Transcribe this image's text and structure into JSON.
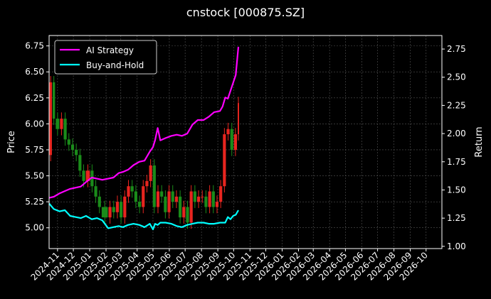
{
  "title": "cnstock [000875.SZ]",
  "colors": {
    "background": "#000000",
    "ai_strategy": "#ff00ff",
    "buy_and_hold": "#00ffff",
    "up_candle": "#e8251f",
    "down_candle": "#1a8c1a",
    "grid": "#555555"
  },
  "chart_data": {
    "type": "line",
    "title": "cnstock [000875.SZ]",
    "x_tick_labels": [
      "2024-11",
      "2024-12",
      "2025-01",
      "2025-02",
      "2025-03",
      "2025-04",
      "2025-05",
      "2025-06",
      "2025-07",
      "2025-08",
      "2025-09",
      "2025-10",
      "2025-11",
      "2025-12",
      "2026-01",
      "2026-02",
      "2026-03",
      "2026-04",
      "2026-05",
      "2026-06",
      "2026-07",
      "2026-08",
      "2026-09",
      "2026-10"
    ],
    "xlim": [
      "2024-10-16",
      "2026-10-31"
    ],
    "y_left": {
      "label": "Price",
      "lim": [
        4.8,
        6.85
      ],
      "ticks": [
        "5.00",
        "5.25",
        "5.50",
        "5.75",
        "6.00",
        "6.25",
        "6.50",
        "6.75"
      ]
    },
    "y_right": {
      "label": "Return",
      "lim": [
        0.98,
        2.87
      ],
      "ticks": [
        "1.00",
        "1.25",
        "1.50",
        "1.75",
        "2.00",
        "2.25",
        "2.50",
        "2.75"
      ]
    },
    "grid": true,
    "legend": "upper-left",
    "series": [
      {
        "name": "AI Strategy",
        "axis": "right",
        "x": [
          "2024-10-16",
          "2024-10-25",
          "2024-11-05",
          "2024-11-15",
          "2024-11-25",
          "2024-12-05",
          "2024-12-15",
          "2024-12-25",
          "2025-01-05",
          "2025-01-15",
          "2025-01-25",
          "2025-02-05",
          "2025-02-15",
          "2025-02-25",
          "2025-03-05",
          "2025-03-15",
          "2025-03-25",
          "2025-04-05",
          "2025-04-15",
          "2025-04-25",
          "2025-05-01",
          "2025-05-05",
          "2025-05-10",
          "2025-05-15",
          "2025-05-25",
          "2025-06-05",
          "2025-06-15",
          "2025-06-25",
          "2025-07-05",
          "2025-07-15",
          "2025-07-25",
          "2025-08-05",
          "2025-08-15",
          "2025-08-25",
          "2025-09-05",
          "2025-09-10",
          "2025-09-15",
          "2025-09-20",
          "2025-09-25",
          "2025-09-30",
          "2025-10-05",
          "2025-10-10"
        ],
        "y": [
          1.43,
          1.44,
          1.47,
          1.49,
          1.51,
          1.52,
          1.53,
          1.57,
          1.61,
          1.6,
          1.59,
          1.6,
          1.61,
          1.65,
          1.66,
          1.68,
          1.72,
          1.75,
          1.76,
          1.84,
          1.88,
          1.94,
          2.05,
          1.94,
          1.96,
          1.98,
          1.99,
          1.98,
          2.0,
          2.08,
          2.12,
          2.12,
          2.15,
          2.19,
          2.2,
          2.24,
          2.32,
          2.31,
          2.38,
          2.45,
          2.52,
          2.77
        ]
      },
      {
        "name": "Buy-and-Hold",
        "axis": "right",
        "x": [
          "2024-10-16",
          "2024-10-25",
          "2024-11-05",
          "2024-11-15",
          "2024-11-25",
          "2024-12-05",
          "2024-12-15",
          "2024-12-25",
          "2025-01-05",
          "2025-01-15",
          "2025-01-25",
          "2025-02-05",
          "2025-02-15",
          "2025-02-25",
          "2025-03-05",
          "2025-03-15",
          "2025-03-25",
          "2025-04-05",
          "2025-04-15",
          "2025-04-25",
          "2025-05-01",
          "2025-05-05",
          "2025-05-10",
          "2025-05-15",
          "2025-05-25",
          "2025-06-05",
          "2025-06-15",
          "2025-06-25",
          "2025-07-05",
          "2025-07-15",
          "2025-07-25",
          "2025-08-05",
          "2025-08-15",
          "2025-08-25",
          "2025-09-05",
          "2025-09-10",
          "2025-09-15",
          "2025-09-20",
          "2025-09-25",
          "2025-09-30",
          "2025-10-05",
          "2025-10-10"
        ],
        "y": [
          1.38,
          1.33,
          1.31,
          1.32,
          1.27,
          1.26,
          1.25,
          1.27,
          1.24,
          1.25,
          1.23,
          1.16,
          1.17,
          1.18,
          1.17,
          1.19,
          1.2,
          1.19,
          1.17,
          1.2,
          1.15,
          1.2,
          1.19,
          1.21,
          1.21,
          1.2,
          1.18,
          1.17,
          1.19,
          1.2,
          1.21,
          1.21,
          1.2,
          1.2,
          1.21,
          1.21,
          1.21,
          1.26,
          1.24,
          1.27,
          1.28,
          1.32
        ]
      }
    ],
    "price": {
      "axis": "left",
      "x": [
        "2024-10-16",
        "2024-10-22",
        "2024-10-28",
        "2024-11-05",
        "2024-11-12",
        "2024-11-19",
        "2024-11-26",
        "2024-12-03",
        "2024-12-10",
        "2024-12-17",
        "2024-12-24",
        "2025-01-02",
        "2025-01-09",
        "2025-01-16",
        "2025-01-23",
        "2025-02-05",
        "2025-02-12",
        "2025-02-19",
        "2025-02-26",
        "2025-03-05",
        "2025-03-12",
        "2025-03-19",
        "2025-03-26",
        "2025-04-02",
        "2025-04-09",
        "2025-04-16",
        "2025-04-23",
        "2025-04-30",
        "2025-05-07",
        "2025-05-14",
        "2025-05-21",
        "2025-05-28",
        "2025-06-04",
        "2025-06-11",
        "2025-06-18",
        "2025-06-25",
        "2025-07-02",
        "2025-07-09",
        "2025-07-16",
        "2025-07-23",
        "2025-07-30",
        "2025-08-06",
        "2025-08-13",
        "2025-08-20",
        "2025-08-27",
        "2025-09-03",
        "2025-09-10",
        "2025-09-17",
        "2025-09-24",
        "2025-10-01",
        "2025-10-08",
        "2025-10-12"
      ],
      "close": [
        5.7,
        6.4,
        6.05,
        5.95,
        6.05,
        5.85,
        5.8,
        5.75,
        5.7,
        5.55,
        5.45,
        5.55,
        5.4,
        5.3,
        5.2,
        5.1,
        5.2,
        5.15,
        5.25,
        5.1,
        5.3,
        5.4,
        5.35,
        5.25,
        5.2,
        5.4,
        5.45,
        5.6,
        5.2,
        5.35,
        5.3,
        5.15,
        5.35,
        5.25,
        5.3,
        5.1,
        5.2,
        5.05,
        5.35,
        5.25,
        5.3,
        5.3,
        5.2,
        5.35,
        5.2,
        5.25,
        5.4,
        5.9,
        5.95,
        5.75,
        5.9,
        6.2
      ]
    }
  },
  "legend": {
    "items": [
      {
        "label": "AI Strategy",
        "color": "#ff00ff"
      },
      {
        "label": "Buy-and-Hold",
        "color": "#00ffff"
      }
    ]
  }
}
